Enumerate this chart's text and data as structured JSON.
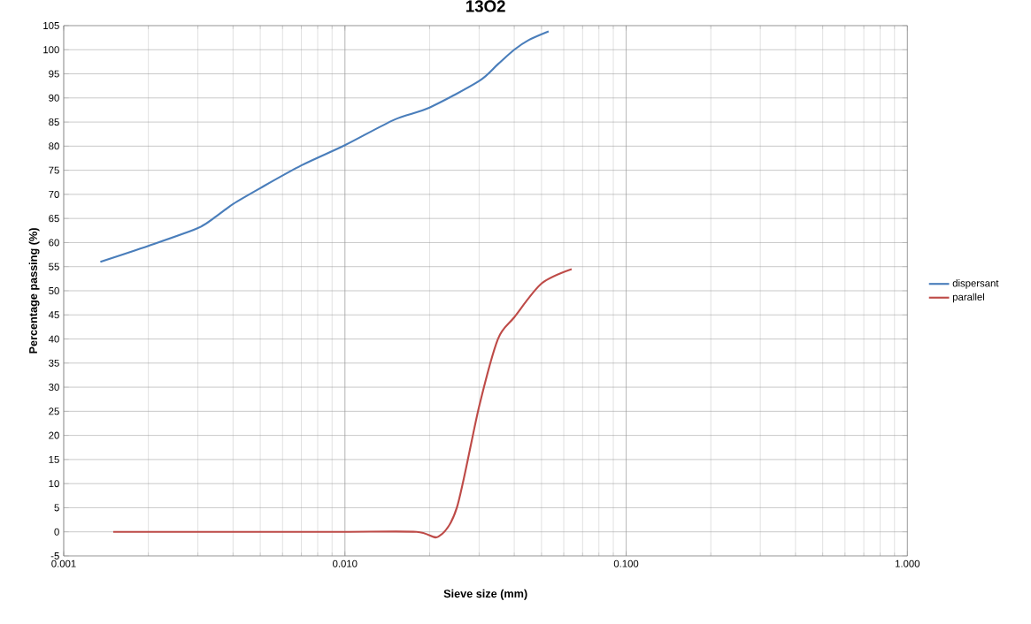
{
  "chart_data": {
    "type": "line",
    "title": "13O2",
    "xlabel": "Sieve size (mm)",
    "ylabel": "Percentage passing (%)",
    "log": "x",
    "xlim": [
      0.001,
      1
    ],
    "xticks": [
      {
        "value": 0.001,
        "label": "0.001"
      },
      {
        "value": 0.01,
        "label": "0.010"
      },
      {
        "value": 0.1,
        "label": "0.100"
      },
      {
        "value": 1,
        "label": "1.000"
      }
    ],
    "ylim": [
      -5,
      105
    ],
    "yticks": [
      -5,
      0,
      5,
      10,
      15,
      20,
      25,
      30,
      35,
      40,
      45,
      50,
      55,
      60,
      65,
      70,
      75,
      80,
      85,
      90,
      95,
      100,
      105
    ],
    "grid": true,
    "legend": "right",
    "marker": "none",
    "line_style": "solid",
    "series": [
      {
        "name": "dispersant",
        "color": "#4a7ebb",
        "x": [
          0.00135,
          0.002,
          0.003,
          0.0035,
          0.004,
          0.005,
          0.007,
          0.01,
          0.015,
          0.02,
          0.03,
          0.035,
          0.04,
          0.045,
          0.053
        ],
        "values": [
          56,
          59.3,
          63,
          65.5,
          68,
          71.3,
          76,
          80.2,
          85.5,
          88,
          93.5,
          97,
          100,
          102,
          103.8
        ]
      },
      {
        "name": "parallel",
        "color": "#be4b48",
        "x": [
          0.0015,
          0.005,
          0.01,
          0.018,
          0.0215,
          0.025,
          0.03,
          0.035,
          0.04,
          0.05,
          0.064
        ],
        "values": [
          0,
          0,
          0,
          0,
          -1,
          5,
          26,
          40,
          44.5,
          51.5,
          54.5
        ]
      }
    ]
  }
}
